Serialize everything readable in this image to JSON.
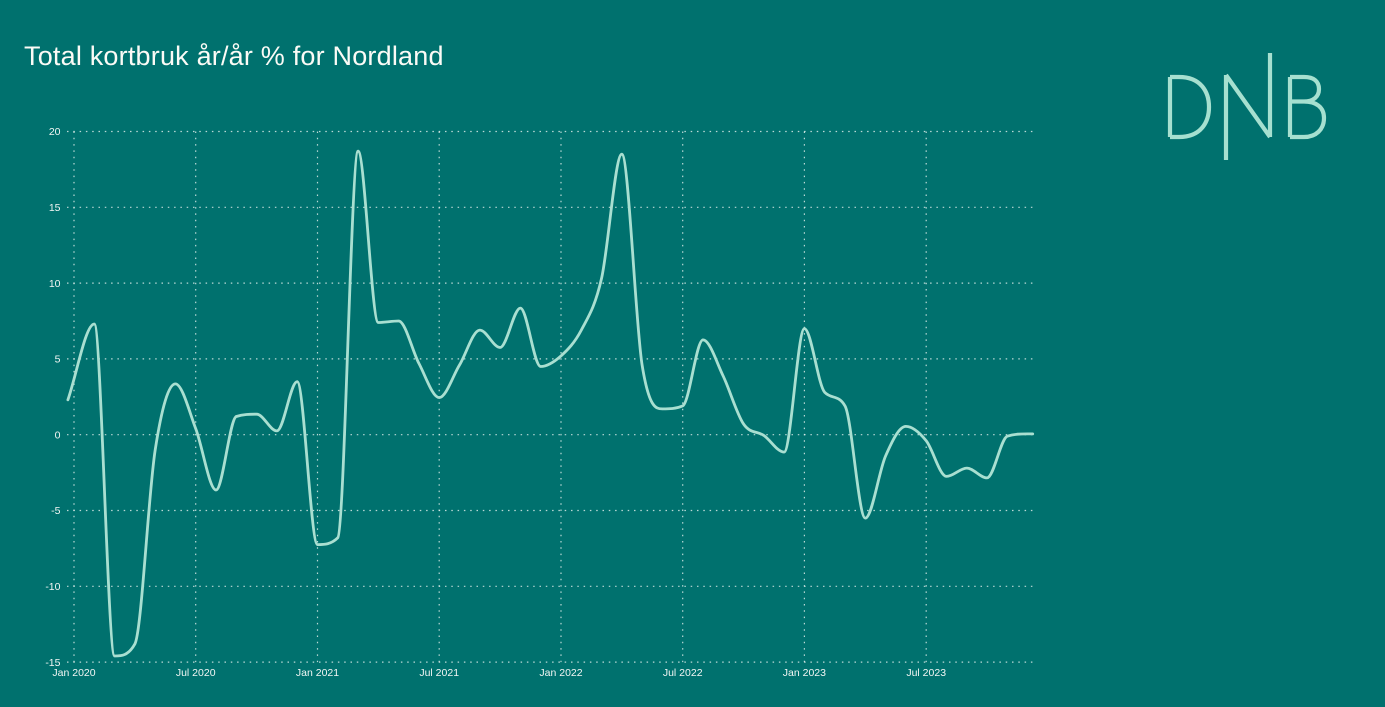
{
  "title": "Total kortbruk år/år % for Nordland",
  "logo": {
    "name": "DNB"
  },
  "colors": {
    "background": "#00716E",
    "line": "#A9DFD1",
    "grid": "#EAF4F1",
    "title_text": "#FBFBF6",
    "tick_text": "#F2F6F4",
    "logo": "#A6E0D0"
  },
  "chart_data": {
    "type": "line",
    "title": "Total kortbruk år/år % for Nordland",
    "xlabel": "",
    "ylabel": "",
    "grid": "dotted",
    "legend": "none",
    "ylim": [
      -15,
      20
    ],
    "y_ticks": [
      20,
      15,
      10,
      5,
      0,
      -5,
      -10,
      -15
    ],
    "x_ticks": [
      {
        "label": "Jan 2020",
        "month_index": 0
      },
      {
        "label": "Jul 2020",
        "month_index": 6
      },
      {
        "label": "Jan 2021",
        "month_index": 12
      },
      {
        "label": "Jul 2021",
        "month_index": 18
      },
      {
        "label": "Jan 2022",
        "month_index": 24
      },
      {
        "label": "Jul 2022",
        "month_index": 30
      },
      {
        "label": "Jan 2023",
        "month_index": 36
      },
      {
        "label": "Jul 2023",
        "month_index": 42
      }
    ],
    "x_domain_month_index": [
      -0.3,
      47.25
    ],
    "month_index_zero": "Jan 2020",
    "series": [
      {
        "name": "Total kortbruk år/år %",
        "smoothing": "monotone-cubic",
        "points": [
          [
            -0.3,
            2.3
          ],
          [
            1,
            7.3
          ],
          [
            2,
            -14.6
          ],
          [
            3,
            -13.8
          ],
          [
            4,
            -1.0
          ],
          [
            5,
            3.35
          ],
          [
            6,
            0.4
          ],
          [
            7,
            -3.65
          ],
          [
            8,
            1.2
          ],
          [
            9,
            1.35
          ],
          [
            10,
            0.25
          ],
          [
            11,
            3.5
          ],
          [
            12,
            -7.25
          ],
          [
            13,
            -6.8
          ],
          [
            14,
            18.7
          ],
          [
            15,
            7.4
          ],
          [
            16,
            7.5
          ],
          [
            17,
            4.7
          ],
          [
            18,
            2.45
          ],
          [
            19,
            4.6
          ],
          [
            20,
            6.9
          ],
          [
            21,
            5.75
          ],
          [
            22,
            8.35
          ],
          [
            23,
            4.5
          ],
          [
            24,
            5.2
          ],
          [
            25,
            6.9
          ],
          [
            26,
            10.3
          ],
          [
            27,
            18.5
          ],
          [
            28,
            4.6
          ],
          [
            29,
            1.7
          ],
          [
            30,
            1.9
          ],
          [
            31,
            6.25
          ],
          [
            32,
            3.85
          ],
          [
            33,
            0.7
          ],
          [
            34,
            -0.05
          ],
          [
            35,
            -1.15
          ],
          [
            36,
            7.0
          ],
          [
            37,
            2.8
          ],
          [
            38,
            1.9
          ],
          [
            39,
            -5.5
          ],
          [
            40,
            -1.4
          ],
          [
            41,
            0.55
          ],
          [
            42,
            -0.4
          ],
          [
            43,
            -2.75
          ],
          [
            44,
            -2.2
          ],
          [
            45,
            -2.85
          ],
          [
            46,
            -0.1
          ],
          [
            47,
            0.05
          ],
          [
            47.25,
            0.05
          ]
        ]
      }
    ]
  }
}
